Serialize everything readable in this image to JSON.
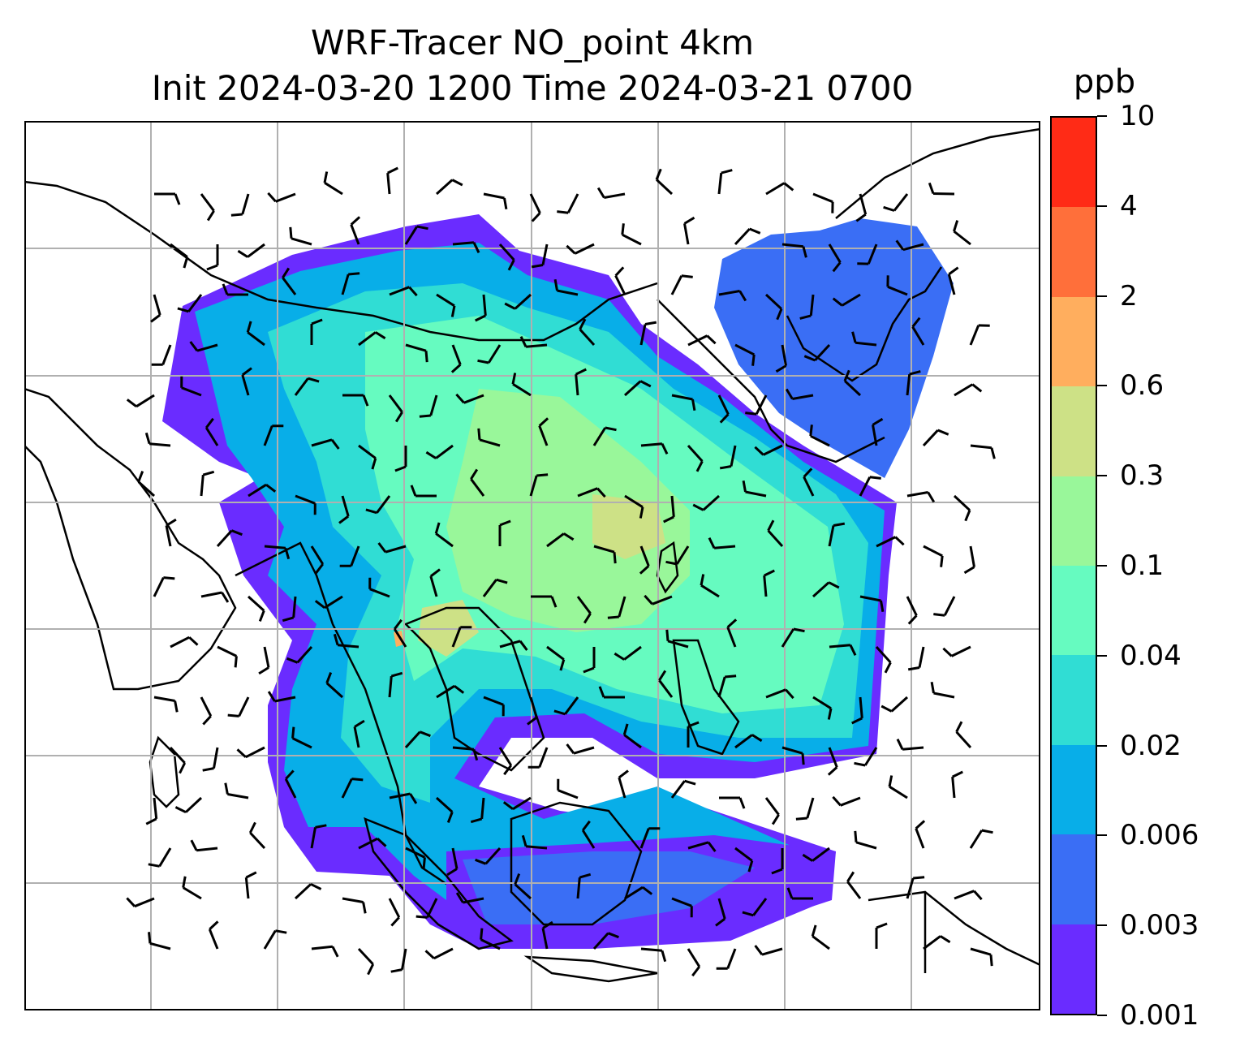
{
  "title": {
    "line1": "WRF-Tracer NO_point 4km",
    "line2": "Init 2024-03-20 1200 Time 2024-03-21 0700"
  },
  "colorbar": {
    "unit": "ppb",
    "levels": [
      "0.001",
      "0.003",
      "0.006",
      "0.02",
      "0.04",
      "0.1",
      "0.3",
      "0.6",
      "2",
      "4",
      "10"
    ],
    "colors": [
      "#6a2cff",
      "#3a6ef5",
      "#08aee8",
      "#30ddd4",
      "#66fbc0",
      "#99f79a",
      "#cde186",
      "#ffae5e",
      "#ff6f3a",
      "#ff2b16"
    ]
  },
  "map": {
    "background": "#ffffff",
    "gridline_color": "#b0b0b0",
    "coastline_color": "#000000",
    "wind_barb_color": "#000000"
  }
}
